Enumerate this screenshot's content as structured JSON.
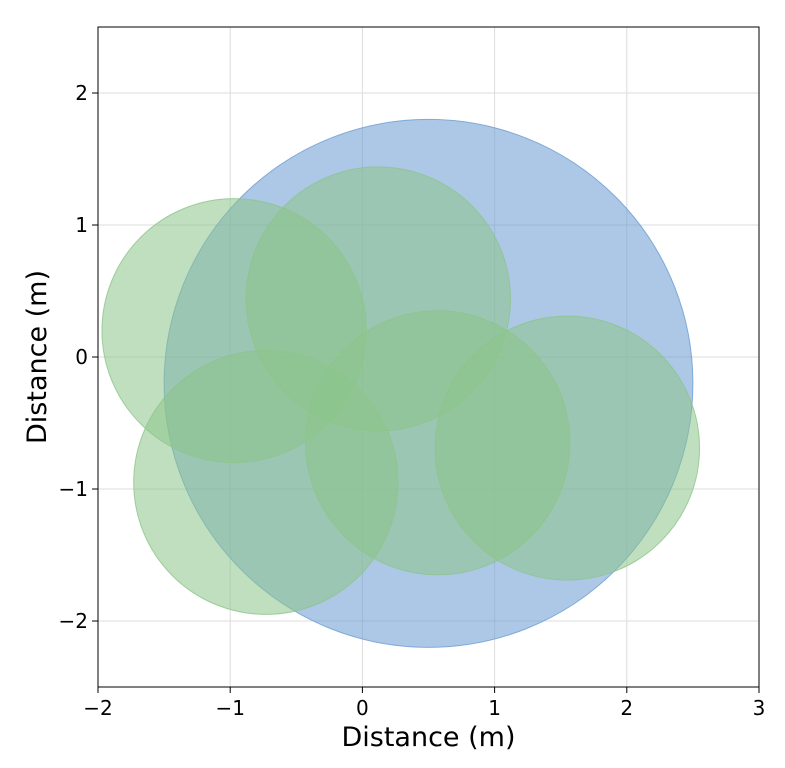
{
  "chart_data": {
    "type": "scatter",
    "title": "",
    "xlabel": "Distance (m)",
    "ylabel": "Distance (m)",
    "xlim": [
      -2,
      3
    ],
    "ylim": [
      -2.5,
      2.5
    ],
    "xticks": [
      -2,
      -1,
      0,
      1,
      2,
      3
    ],
    "yticks": [
      -2,
      -1,
      0,
      1,
      2
    ],
    "xtick_labels": [
      "−2",
      "−1",
      "0",
      "1",
      "2",
      "3"
    ],
    "ytick_labels": [
      "−2",
      "−1",
      "0",
      "1",
      "2"
    ],
    "grid": true,
    "circles": [
      {
        "x": 0.5,
        "y": -0.2,
        "r": 2.0,
        "color": "#6a9bd1"
      },
      {
        "x": -0.97,
        "y": 0.2,
        "r": 1.0,
        "color": "#8cc48a"
      },
      {
        "x": -0.73,
        "y": -0.95,
        "r": 1.0,
        "color": "#8cc48a"
      },
      {
        "x": 0.12,
        "y": 0.44,
        "r": 1.0,
        "color": "#8cc48a"
      },
      {
        "x": 0.57,
        "y": -0.65,
        "r": 1.0,
        "color": "#8cc48a"
      },
      {
        "x": 1.55,
        "y": -0.69,
        "r": 1.0,
        "color": "#8cc48a"
      }
    ]
  }
}
